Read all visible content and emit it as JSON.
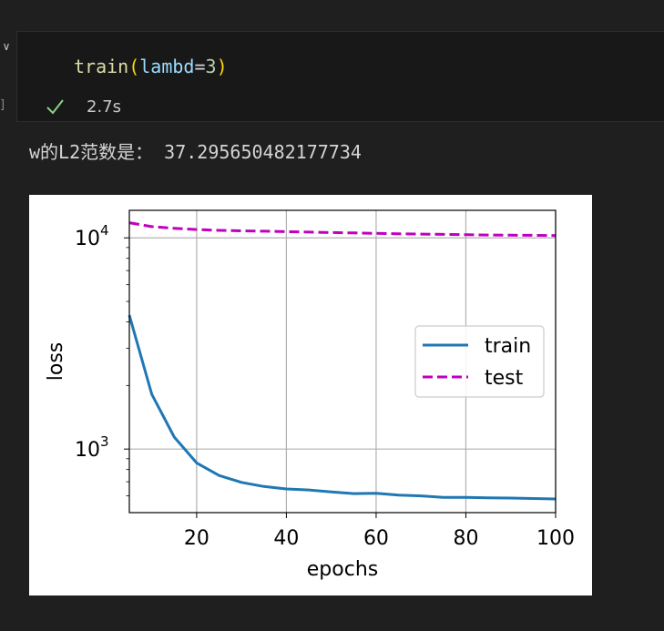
{
  "cell": {
    "code": {
      "fn": "train",
      "open": "(",
      "param": "lambd",
      "op": "=",
      "value": "3",
      "close": ")"
    },
    "status_icon": "check-icon",
    "exec_time": "2.7s"
  },
  "output": {
    "text": "w的L2范数是： 37.295650482177734"
  },
  "chart_data": {
    "type": "line",
    "xlabel": "epochs",
    "ylabel": "loss",
    "xlim": [
      5,
      100
    ],
    "ylim": [
      500,
      13500
    ],
    "yscale": "log",
    "grid": true,
    "legend_position": "center-right",
    "x_ticks": [
      20,
      40,
      60,
      80,
      100
    ],
    "y_ticks": [
      {
        "value": 1000,
        "base": "10",
        "exp": "3"
      },
      {
        "value": 10000,
        "base": "10",
        "exp": "4"
      }
    ],
    "series": [
      {
        "name": "train",
        "color": "#1f77b4",
        "style": "solid",
        "x": [
          5,
          10,
          15,
          20,
          25,
          30,
          35,
          40,
          45,
          50,
          55,
          60,
          65,
          70,
          75,
          80,
          85,
          90,
          95,
          100
        ],
        "y": [
          4300,
          1820,
          1140,
          860,
          750,
          695,
          665,
          647,
          640,
          627,
          615,
          618,
          605,
          600,
          591,
          590,
          588,
          586,
          583,
          580
        ]
      },
      {
        "name": "test",
        "color": "#bf00bf",
        "style": "dashed",
        "x": [
          5,
          10,
          15,
          20,
          25,
          30,
          35,
          40,
          45,
          50,
          55,
          60,
          65,
          70,
          75,
          80,
          85,
          90,
          95,
          100
        ],
        "y": [
          11800,
          11300,
          11100,
          10950,
          10850,
          10800,
          10750,
          10700,
          10650,
          10600,
          10550,
          10500,
          10450,
          10420,
          10390,
          10350,
          10320,
          10300,
          10280,
          10250
        ]
      }
    ]
  }
}
